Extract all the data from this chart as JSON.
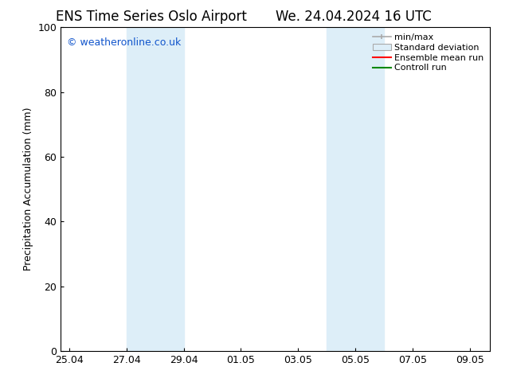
{
  "title_left": "ENS Time Series Oslo Airport",
  "title_right": "We. 24.04.2024 16 UTC",
  "ylabel": "Precipitation Accumulation (mm)",
  "ylim": [
    0,
    100
  ],
  "yticks": [
    0,
    20,
    40,
    60,
    80,
    100
  ],
  "bg_color": "#ffffff",
  "plot_bg_color": "#ffffff",
  "shaded_color": "#ddeef8",
  "watermark": "© weatheronline.co.uk",
  "watermark_color": "#1155cc",
  "watermark_fontsize": 9,
  "legend_labels": [
    "min/max",
    "Standard deviation",
    "Ensemble mean run",
    "Controll run"
  ],
  "legend_line_color": "#aaaaaa",
  "legend_patch_color": "#ddeef8",
  "legend_red": "#ff0000",
  "legend_green": "#008800",
  "x_tick_labels": [
    "25.04",
    "27.04",
    "29.04",
    "01.05",
    "03.05",
    "05.05",
    "07.05",
    "09.05"
  ],
  "title_fontsize": 12,
  "label_fontsize": 9,
  "tick_fontsize": 9,
  "legend_fontsize": 8
}
